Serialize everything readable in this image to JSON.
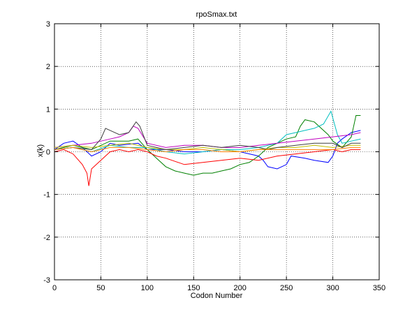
{
  "chart_data": {
    "type": "line",
    "title": "rpoSmax.txt",
    "xlabel": "Codon Number",
    "ylabel": "x(k)",
    "xlim": [
      0,
      350
    ],
    "ylim": [
      -3,
      3
    ],
    "xticks": [
      0,
      50,
      100,
      150,
      200,
      250,
      300,
      350
    ],
    "yticks": [
      -3,
      -2,
      -1,
      0,
      1,
      2,
      3
    ],
    "grid": true,
    "series": [
      {
        "color": "#0000ff",
        "points": [
          [
            0,
            0.05
          ],
          [
            10,
            0.2
          ],
          [
            20,
            0.25
          ],
          [
            30,
            0.1
          ],
          [
            40,
            -0.1
          ],
          [
            50,
            0.0
          ],
          [
            60,
            0.2
          ],
          [
            70,
            0.15
          ],
          [
            90,
            0.2
          ],
          [
            100,
            0.05
          ],
          [
            120,
            0.05
          ],
          [
            140,
            0.0
          ],
          [
            160,
            0.0
          ],
          [
            180,
            0.05
          ],
          [
            200,
            0.0
          ],
          [
            220,
            -0.1
          ],
          [
            225,
            -0.2
          ],
          [
            230,
            -0.35
          ],
          [
            240,
            -0.4
          ],
          [
            250,
            -0.3
          ],
          [
            255,
            -0.1
          ],
          [
            270,
            -0.15
          ],
          [
            280,
            -0.2
          ],
          [
            295,
            -0.25
          ],
          [
            300,
            -0.1
          ],
          [
            305,
            0.2
          ],
          [
            310,
            0.3
          ],
          [
            320,
            0.45
          ],
          [
            330,
            0.5
          ]
        ]
      },
      {
        "color": "#008000",
        "points": [
          [
            0,
            0.05
          ],
          [
            20,
            0.15
          ],
          [
            40,
            0.05
          ],
          [
            60,
            0.25
          ],
          [
            80,
            0.25
          ],
          [
            90,
            0.3
          ],
          [
            100,
            0.05
          ],
          [
            110,
            -0.15
          ],
          [
            120,
            -0.35
          ],
          [
            130,
            -0.45
          ],
          [
            140,
            -0.5
          ],
          [
            150,
            -0.55
          ],
          [
            160,
            -0.5
          ],
          [
            170,
            -0.5
          ],
          [
            180,
            -0.45
          ],
          [
            190,
            -0.4
          ],
          [
            200,
            -0.3
          ],
          [
            210,
            -0.25
          ],
          [
            220,
            -0.1
          ],
          [
            230,
            0.1
          ],
          [
            240,
            0.2
          ],
          [
            250,
            0.3
          ],
          [
            260,
            0.35
          ],
          [
            265,
            0.6
          ],
          [
            270,
            0.75
          ],
          [
            280,
            0.7
          ],
          [
            295,
            0.4
          ],
          [
            300,
            0.25
          ],
          [
            310,
            0.1
          ],
          [
            320,
            0.35
          ],
          [
            325,
            0.85
          ],
          [
            330,
            0.85
          ]
        ]
      },
      {
        "color": "#ff0000",
        "points": [
          [
            0,
            0.0
          ],
          [
            10,
            0.05
          ],
          [
            20,
            -0.05
          ],
          [
            30,
            -0.3
          ],
          [
            35,
            -0.5
          ],
          [
            37,
            -0.8
          ],
          [
            40,
            -0.4
          ],
          [
            50,
            -0.2
          ],
          [
            60,
            0.0
          ],
          [
            70,
            0.05
          ],
          [
            80,
            0.0
          ],
          [
            90,
            0.05
          ],
          [
            100,
            0.0
          ],
          [
            110,
            -0.1
          ],
          [
            120,
            -0.15
          ],
          [
            140,
            -0.3
          ],
          [
            160,
            -0.25
          ],
          [
            180,
            -0.2
          ],
          [
            200,
            -0.15
          ],
          [
            220,
            -0.2
          ],
          [
            240,
            -0.1
          ],
          [
            260,
            -0.05
          ],
          [
            280,
            0.0
          ],
          [
            300,
            0.05
          ],
          [
            310,
            0.0
          ],
          [
            320,
            0.05
          ],
          [
            330,
            0.05
          ]
        ]
      },
      {
        "color": "#00bfbf",
        "points": [
          [
            0,
            0.05
          ],
          [
            20,
            0.1
          ],
          [
            40,
            0.0
          ],
          [
            60,
            0.15
          ],
          [
            80,
            0.1
          ],
          [
            100,
            0.1
          ],
          [
            120,
            0.0
          ],
          [
            140,
            -0.05
          ],
          [
            160,
            0.0
          ],
          [
            180,
            0.05
          ],
          [
            200,
            0.05
          ],
          [
            220,
            0.1
          ],
          [
            240,
            0.2
          ],
          [
            250,
            0.4
          ],
          [
            260,
            0.45
          ],
          [
            270,
            0.5
          ],
          [
            280,
            0.55
          ],
          [
            290,
            0.65
          ],
          [
            298,
            0.95
          ],
          [
            305,
            0.4
          ],
          [
            310,
            0.2
          ],
          [
            320,
            0.25
          ],
          [
            330,
            0.3
          ]
        ]
      },
      {
        "color": "#bf00bf",
        "points": [
          [
            0,
            0.1
          ],
          [
            20,
            0.15
          ],
          [
            40,
            0.2
          ],
          [
            60,
            0.3
          ],
          [
            70,
            0.35
          ],
          [
            80,
            0.45
          ],
          [
            85,
            0.6
          ],
          [
            90,
            0.55
          ],
          [
            100,
            0.2
          ],
          [
            120,
            0.1
          ],
          [
            140,
            0.15
          ],
          [
            160,
            0.15
          ],
          [
            180,
            0.1
          ],
          [
            200,
            0.1
          ],
          [
            220,
            0.15
          ],
          [
            240,
            0.2
          ],
          [
            260,
            0.25
          ],
          [
            280,
            0.3
          ],
          [
            300,
            0.35
          ],
          [
            320,
            0.4
          ],
          [
            330,
            0.45
          ]
        ]
      },
      {
        "color": "#bfbf00",
        "points": [
          [
            0,
            0.1
          ],
          [
            20,
            0.15
          ],
          [
            40,
            0.1
          ],
          [
            60,
            0.15
          ],
          [
            80,
            0.2
          ],
          [
            100,
            0.1
          ],
          [
            120,
            0.05
          ],
          [
            140,
            0.05
          ],
          [
            160,
            0.1
          ],
          [
            180,
            0.05
          ],
          [
            200,
            0.0
          ],
          [
            220,
            0.05
          ],
          [
            240,
            0.1
          ],
          [
            260,
            0.1
          ],
          [
            280,
            0.15
          ],
          [
            300,
            0.1
          ],
          [
            320,
            0.15
          ],
          [
            330,
            0.15
          ]
        ]
      },
      {
        "color": "#404040",
        "points": [
          [
            0,
            0.05
          ],
          [
            20,
            0.1
          ],
          [
            40,
            0.05
          ],
          [
            50,
            0.3
          ],
          [
            55,
            0.55
          ],
          [
            60,
            0.5
          ],
          [
            70,
            0.4
          ],
          [
            80,
            0.45
          ],
          [
            88,
            0.7
          ],
          [
            92,
            0.6
          ],
          [
            100,
            0.15
          ],
          [
            110,
            0.1
          ],
          [
            120,
            0.05
          ],
          [
            140,
            0.1
          ],
          [
            160,
            0.15
          ],
          [
            180,
            0.1
          ],
          [
            200,
            0.15
          ],
          [
            220,
            0.1
          ],
          [
            230,
            0.05
          ],
          [
            240,
            0.1
          ],
          [
            260,
            0.15
          ],
          [
            280,
            0.2
          ],
          [
            300,
            0.2
          ],
          [
            310,
            0.1
          ],
          [
            320,
            0.2
          ],
          [
            330,
            0.2
          ]
        ]
      },
      {
        "color": "#ff8000",
        "points": [
          [
            0,
            0.05
          ],
          [
            20,
            0.1
          ],
          [
            40,
            0.0
          ],
          [
            60,
            0.1
          ],
          [
            80,
            0.1
          ],
          [
            100,
            0.05
          ],
          [
            120,
            0.0
          ],
          [
            140,
            0.05
          ],
          [
            160,
            0.05
          ],
          [
            180,
            0.0
          ],
          [
            200,
            0.0
          ],
          [
            220,
            0.05
          ],
          [
            240,
            0.05
          ],
          [
            260,
            0.05
          ],
          [
            280,
            0.05
          ],
          [
            300,
            0.05
          ],
          [
            320,
            0.1
          ],
          [
            330,
            0.1
          ]
        ]
      }
    ]
  }
}
